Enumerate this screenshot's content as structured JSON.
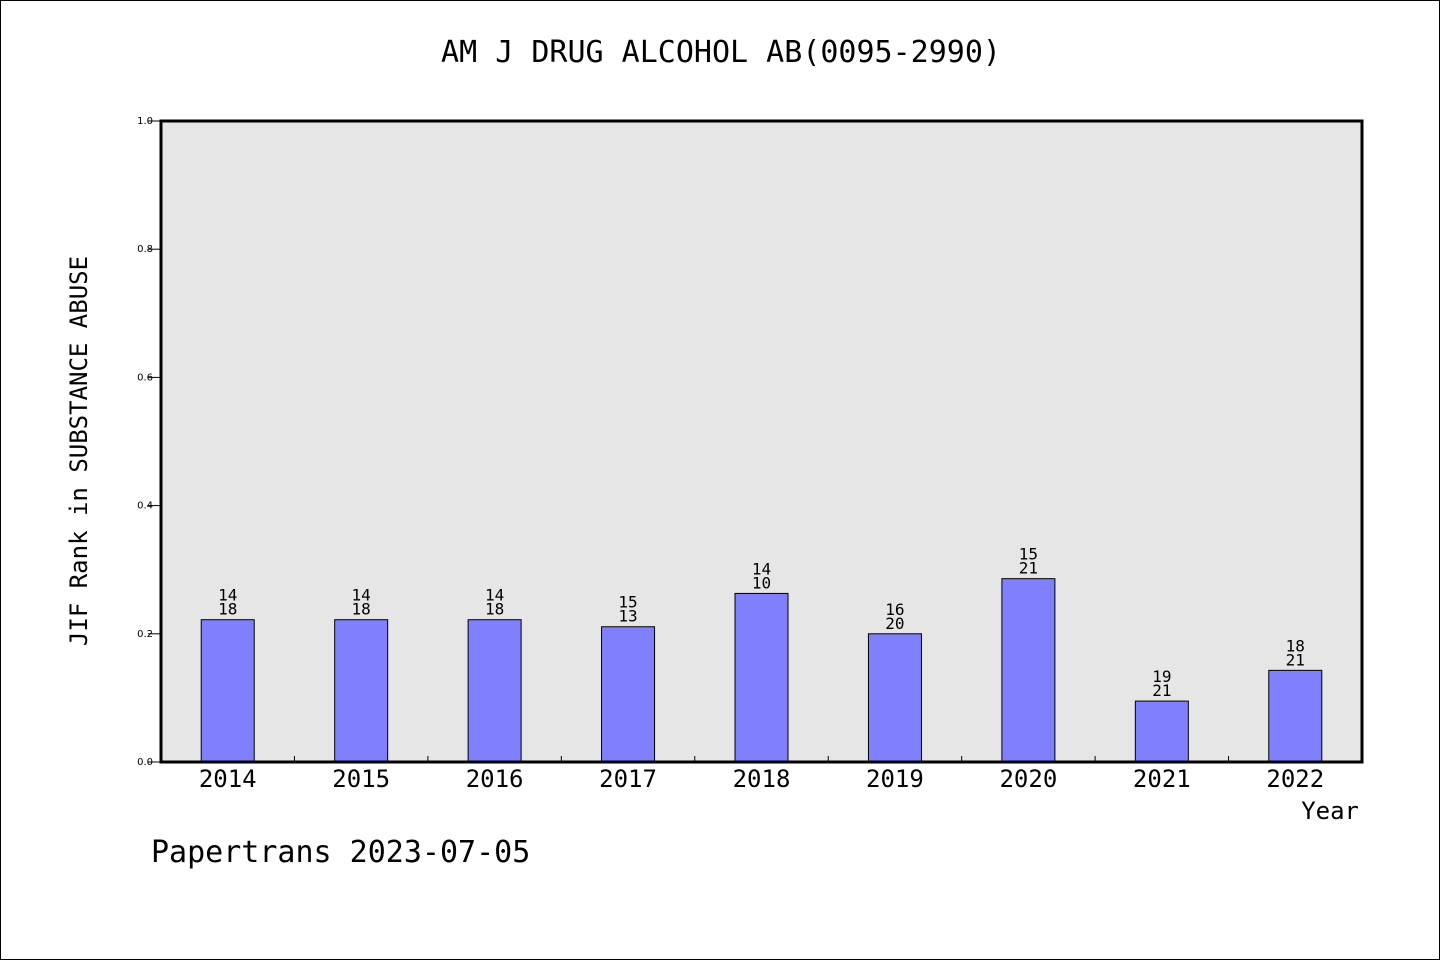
{
  "chart_data": {
    "type": "bar",
    "title": "AM J DRUG ALCOHOL AB(0095-2990)",
    "xlabel": "Year",
    "ylabel": "JIF Rank in SUBSTANCE ABUSE",
    "ylim": [
      0,
      1.0
    ],
    "yticks": [
      "0.0",
      "0.2",
      "0.4",
      "0.6",
      "0.8",
      "1.0"
    ],
    "categories": [
      "2014",
      "2015",
      "2016",
      "2017",
      "2018",
      "2019",
      "2020",
      "2021",
      "2022"
    ],
    "values": [
      0.222,
      0.222,
      0.222,
      0.211,
      0.263,
      0.2,
      0.286,
      0.095,
      0.143
    ],
    "labels_top": [
      "14",
      "14",
      "14",
      "15",
      "14",
      "16",
      "15",
      "19",
      "18"
    ],
    "labels_bottom": [
      "18",
      "18",
      "18",
      "13",
      "10",
      "20",
      "21",
      "21",
      "21"
    ],
    "bar_color": "#8080ff",
    "plot_background": "#e6e6e6",
    "grid": false,
    "legend": "none"
  },
  "footer": {
    "text": "Papertrans 2023-07-05"
  }
}
